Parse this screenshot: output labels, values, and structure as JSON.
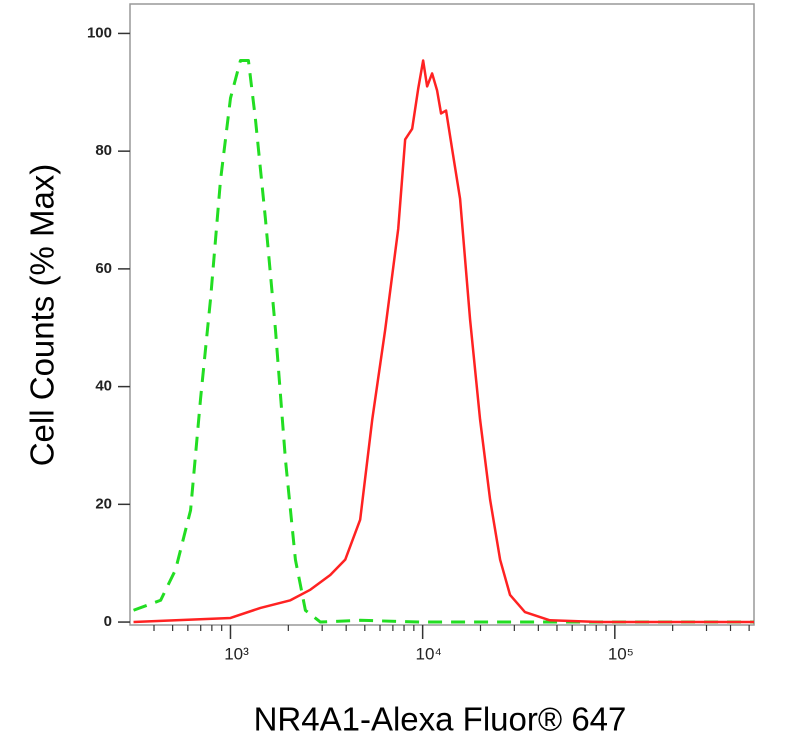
{
  "chart_data": {
    "type": "line",
    "x_label": "NR4A1-Alexa Fluor® 647",
    "y_label": "Cell Counts (% Max)",
    "xscale": "log",
    "xlim": [
      300,
      530000
    ],
    "ylim": [
      -0.5,
      105
    ],
    "xticks": [
      {
        "value": 1000,
        "label": "10³"
      },
      {
        "value": 10000,
        "label": "10⁴"
      },
      {
        "value": 100000,
        "label": "10⁵"
      }
    ],
    "minor_xticks": [
      400,
      500,
      600,
      700,
      800,
      900,
      2000,
      3000,
      4000,
      5000,
      6000,
      7000,
      8000,
      9000,
      20000,
      30000,
      40000,
      50000,
      60000,
      70000,
      80000,
      90000,
      200000,
      300000,
      400000,
      500000
    ],
    "yticks": [
      0,
      20,
      40,
      60,
      80,
      100
    ],
    "series": [
      {
        "color": "#22dd22",
        "dashed": true,
        "x": [
          313,
          433,
          518,
          620,
          699,
          788,
          887,
          1000,
          1127,
          1240,
          1348,
          1520,
          1714,
          1932,
          2177,
          2454,
          2937,
          4730,
          9700,
          32100,
          275000,
          530000
        ],
        "values": [
          2,
          3.7,
          8.9,
          19,
          38,
          55,
          75,
          89,
          95.4,
          95.4,
          85.5,
          68.5,
          49.7,
          27.6,
          10.6,
          2,
          0,
          0.3,
          0,
          0,
          0,
          0
        ]
      },
      {
        "color": "#ff2222",
        "dashed": false,
        "x": [
          313,
          1000,
          1432,
          2050,
          2606,
          3306,
          3955,
          4730,
          5466,
          6385,
          7462,
          8110,
          8820,
          9480,
          10060,
          10550,
          11200,
          11890,
          12470,
          13240,
          14230,
          15660,
          17650,
          19900,
          22440,
          25300,
          28500,
          34060,
          45900,
          83500,
          530000
        ],
        "values": [
          0,
          0.7,
          2.4,
          3.7,
          5.5,
          8,
          10.6,
          17.4,
          34.4,
          49.7,
          66.8,
          82,
          83.8,
          90.6,
          95.4,
          91,
          93.2,
          90.3,
          86.4,
          86.9,
          80.4,
          71.9,
          51.4,
          34.4,
          20.8,
          10.6,
          4.6,
          1.7,
          0.3,
          0,
          0
        ]
      }
    ]
  }
}
